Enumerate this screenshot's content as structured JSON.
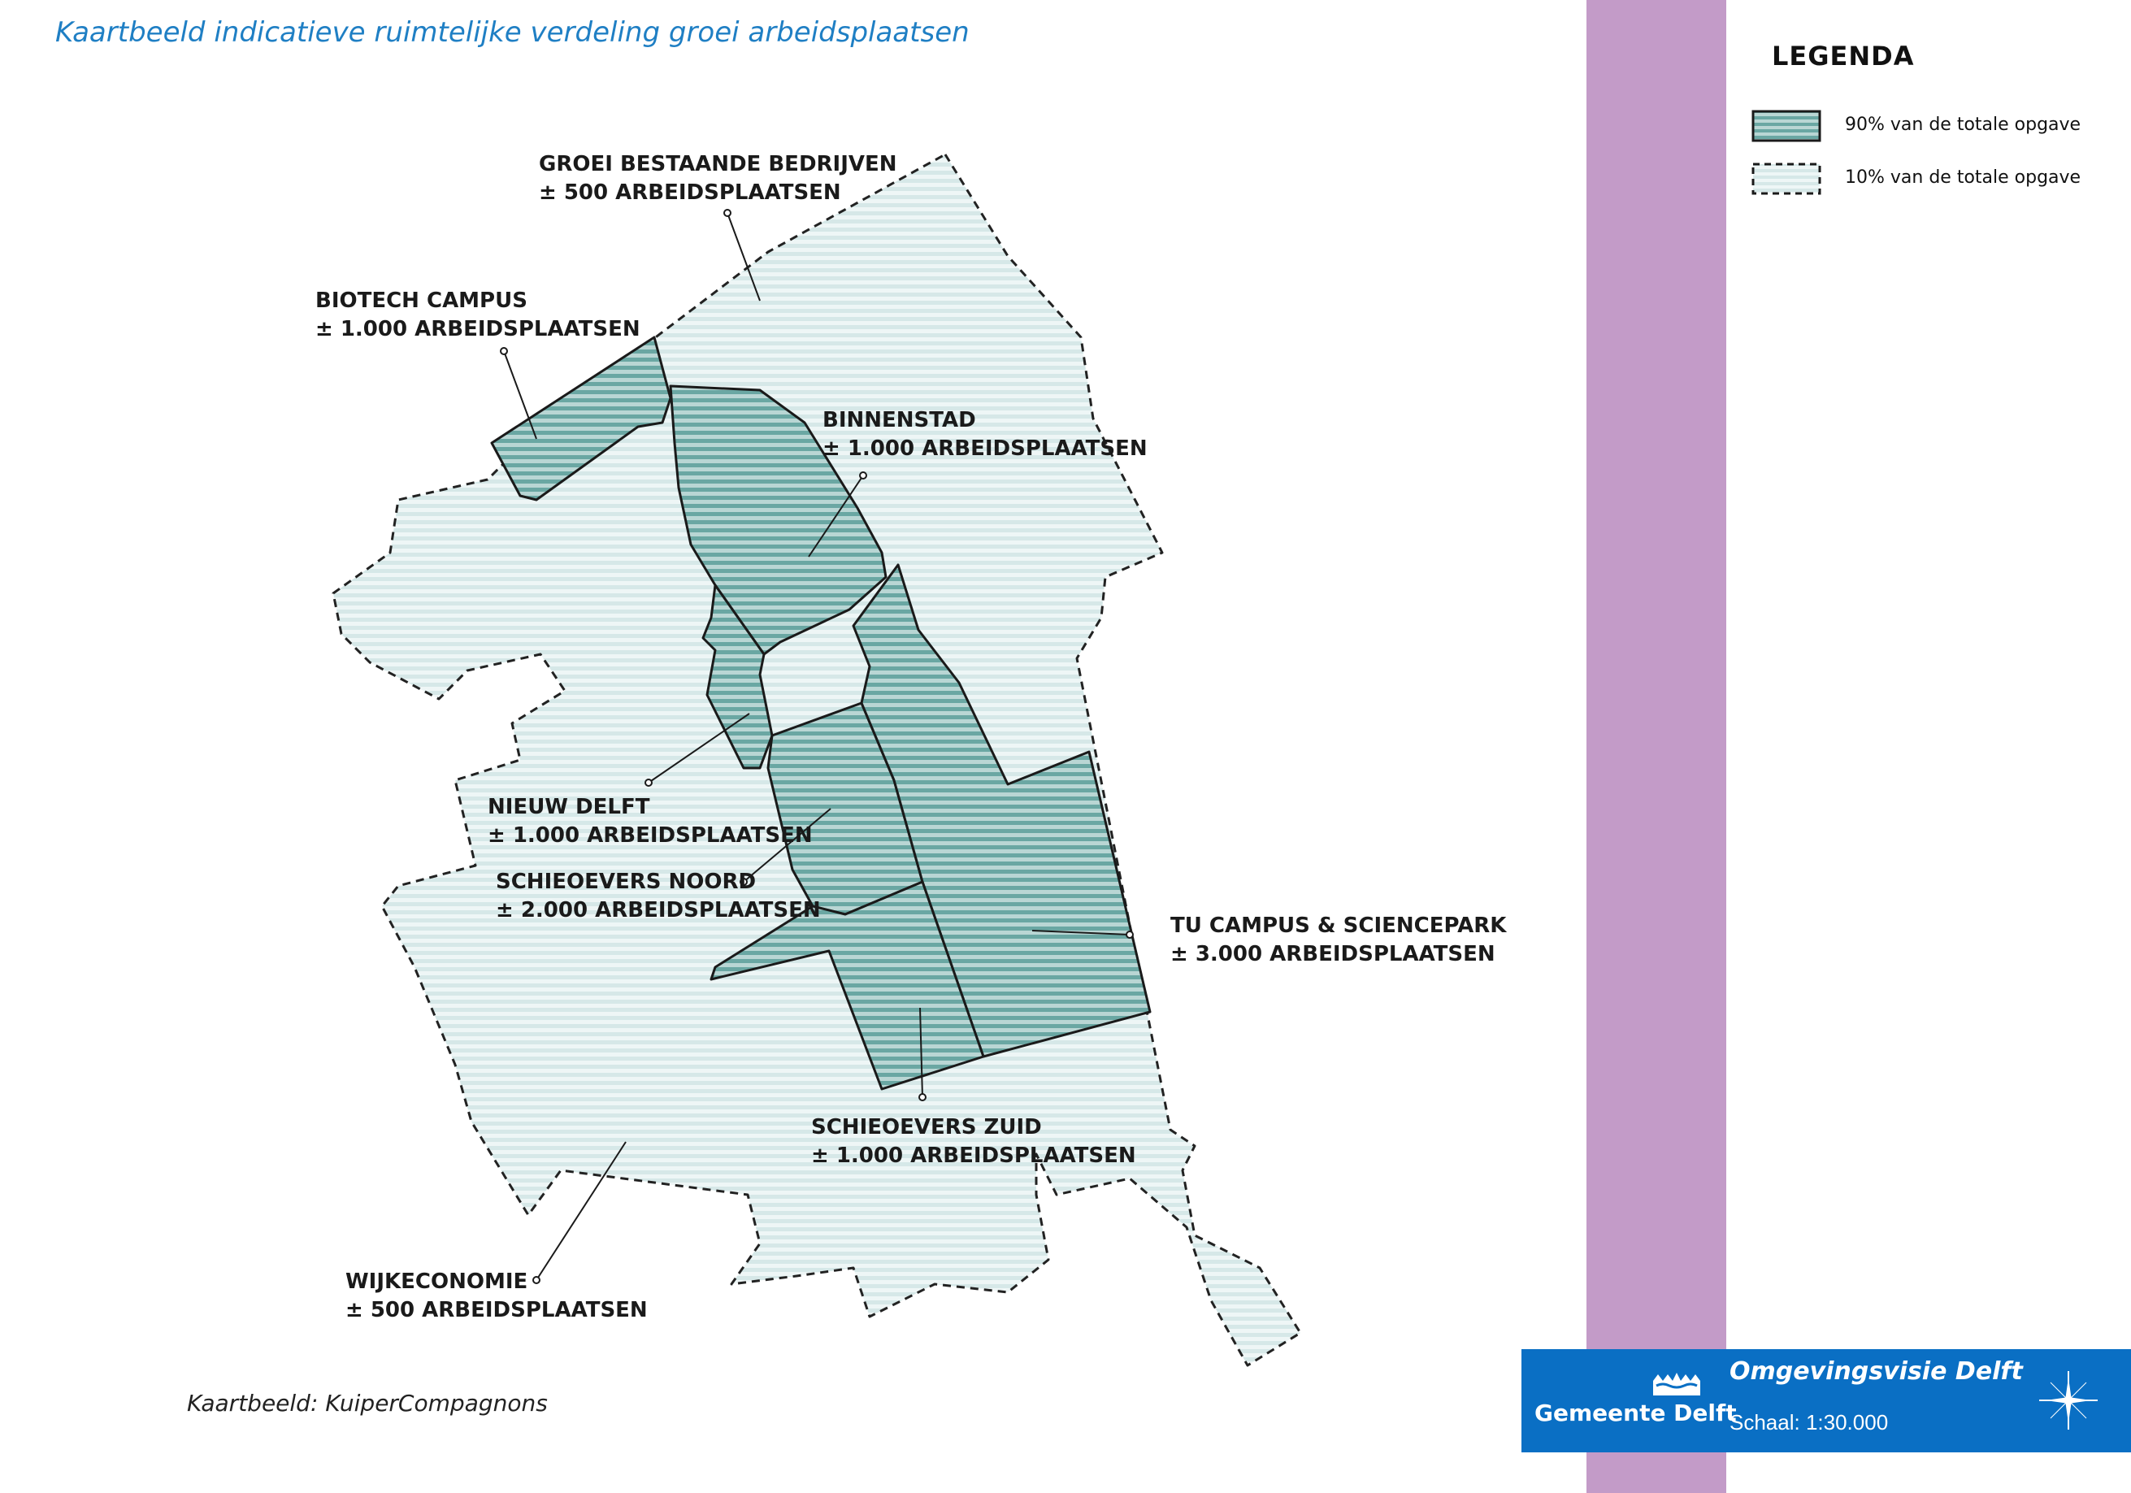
{
  "title": "Kaartbeeld indicatieve ruimtelijke verdeling groei arbeidsplaatsen",
  "credit": "Kaartbeeld: KuiperCompagnons",
  "legend": {
    "title": "LEGENDA",
    "items": [
      {
        "label": "90% van de totale opgave",
        "style": "solid"
      },
      {
        "label": "10% van de totale opgave",
        "style": "dashed"
      }
    ]
  },
  "areas": {
    "groei_bestaande": {
      "name": "GROEI BESTAANDE BEDRIJVEN",
      "value": "± 500 ARBEIDSPLAATSEN"
    },
    "biotech": {
      "name": "BIOTECH CAMPUS",
      "value": "± 1.000 ARBEIDSPLAATSEN"
    },
    "binnenstad": {
      "name": "BINNENSTAD",
      "value": "± 1.000 ARBEIDSPLAATSEN"
    },
    "nieuw_delft": {
      "name": "NIEUW DELFT",
      "value": "± 1.000 ARBEIDSPLAATSEN"
    },
    "schieoevers_noord": {
      "name": "SCHIEOEVERS NOORD",
      "value": "± 2.000 ARBEIDSPLAATSEN"
    },
    "tu_campus": {
      "name": "TU CAMPUS & SCIENCEPARK",
      "value": "± 3.000 ARBEIDSPLAATSEN"
    },
    "schieoevers_zuid": {
      "name": "SCHIEOEVERS ZUID",
      "value": "± 1.000 ARBEIDSPLAATSEN"
    },
    "wijkeconomie": {
      "name": "WIJKECONOMIE",
      "value": "± 500 ARBEIDSPLAATSEN"
    }
  },
  "footer": {
    "brand": "Gemeente Delft",
    "title": "Omgevingsvisie Delft",
    "scale": "Schaal: 1:30.000"
  },
  "colors": {
    "title": "#1f7fc4",
    "solid_fill": "#7fb3b0",
    "light_fill": "#e6f1f1",
    "purple_band": "#c39bc8",
    "footer_bar": "#0a6fc4"
  }
}
